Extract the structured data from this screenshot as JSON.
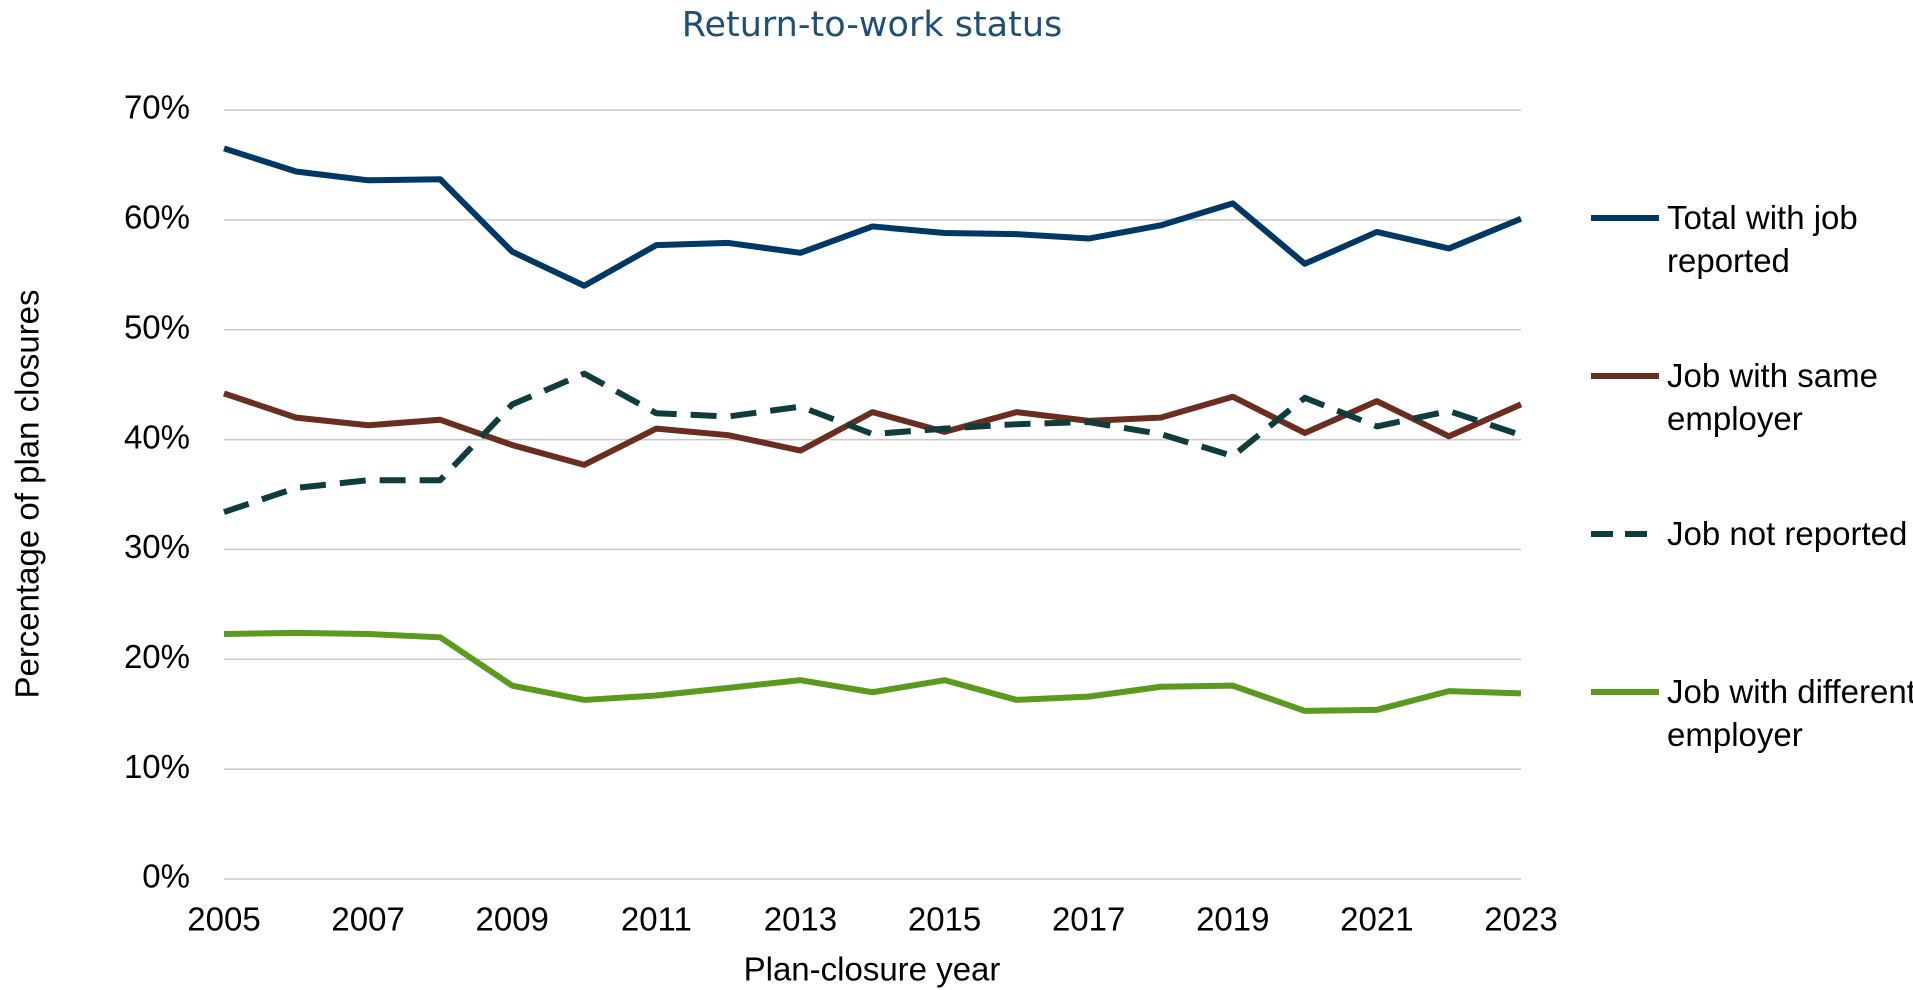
{
  "chart_data": {
    "type": "line",
    "title": "Return-to-work status",
    "x_label": "Plan-closure year",
    "y_label": "Percentage of plan closures",
    "x": [
      2005,
      2006,
      2007,
      2008,
      2009,
      2010,
      2011,
      2012,
      2013,
      2014,
      2015,
      2016,
      2017,
      2018,
      2019,
      2020,
      2021,
      2022,
      2023
    ],
    "xlim": [
      2005,
      2023
    ],
    "xticks": [
      2005,
      2007,
      2009,
      2011,
      2013,
      2015,
      2017,
      2019,
      2021,
      2023
    ],
    "ylim": [
      0,
      70
    ],
    "yticks": [
      {
        "value": 0,
        "label": "0%"
      },
      {
        "value": 10,
        "label": "10%"
      },
      {
        "value": 20,
        "label": "20%"
      },
      {
        "value": 30,
        "label": "30%"
      },
      {
        "value": 40,
        "label": "40%"
      },
      {
        "value": 50,
        "label": "50%"
      },
      {
        "value": 60,
        "label": "60%"
      },
      {
        "value": 70,
        "label": "70%"
      }
    ],
    "grid": true,
    "legend": "right",
    "series": [
      {
        "name": "Total with job reported",
        "color": "#003865",
        "dashed": false,
        "values": [
          66.5,
          64.4,
          63.6,
          63.7,
          57.1,
          54.0,
          57.7,
          57.9,
          57.0,
          59.4,
          58.8,
          58.7,
          58.3,
          59.5,
          61.5,
          56.0,
          58.9,
          57.4,
          60.1
        ]
      },
      {
        "name": "Job with same employer",
        "color": "#6b2d1f",
        "dashed": false,
        "values": [
          44.2,
          42.0,
          41.3,
          41.8,
          39.5,
          37.7,
          41.0,
          40.4,
          39.0,
          42.5,
          40.7,
          42.5,
          41.7,
          42.0,
          43.9,
          40.6,
          43.5,
          40.3,
          43.2
        ]
      },
      {
        "name": "Job not reported",
        "color": "#0f3d3e",
        "dashed": true,
        "values": [
          33.4,
          35.6,
          36.3,
          36.3,
          43.2,
          46.0,
          42.4,
          42.1,
          43.0,
          40.5,
          41.0,
          41.4,
          41.6,
          40.5,
          38.5,
          43.8,
          41.2,
          42.6,
          40.4
        ]
      },
      {
        "name": "Job with different employer",
        "color": "#5b9a1f",
        "dashed": false,
        "values": [
          22.3,
          22.4,
          22.3,
          22.0,
          17.6,
          16.3,
          16.7,
          17.4,
          18.1,
          17.0,
          18.1,
          16.3,
          16.6,
          17.5,
          17.6,
          15.3,
          15.4,
          17.1,
          16.9
        ]
      }
    ]
  }
}
